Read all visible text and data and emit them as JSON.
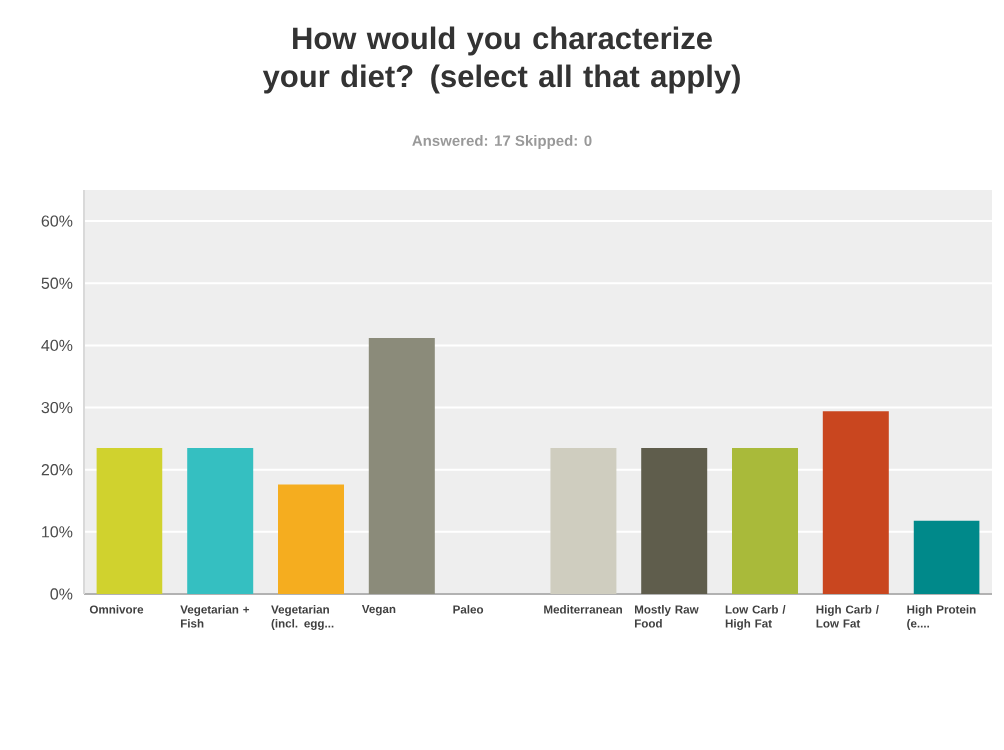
{
  "chart_data": {
    "type": "bar",
    "title": "How would you characterize your diet? (select all that apply)",
    "subtitle": "Answered: 17    Skipped: 0",
    "categories": [
      "Omnivore",
      "Vegetarian + Fish",
      "Vegetarian (incl. egg...",
      "Vegan",
      "Paleo",
      "Mediterranean",
      "Mostly Raw Food",
      "Low Carb / High Fat",
      "High Carb / Low Fat",
      "High Protein (e...."
    ],
    "values": [
      23.5,
      23.5,
      17.6,
      41.2,
      0,
      23.5,
      23.5,
      23.5,
      29.4,
      11.8
    ],
    "colors": [
      "#d0d22e",
      "#35bfc1",
      "#f5ad1f",
      "#8b8b7a",
      "#e39b3b",
      "#cfcdbf",
      "#5f5d4c",
      "#a9ba3a",
      "#c9461f",
      "#00898a"
    ],
    "ylim": [
      0,
      65
    ],
    "yticks": [
      {
        "value": 0,
        "label": "0%"
      },
      {
        "value": 10,
        "label": "10%"
      },
      {
        "value": 20,
        "label": "20%"
      },
      {
        "value": 30,
        "label": "30%"
      },
      {
        "value": 40,
        "label": "40%"
      },
      {
        "value": 50,
        "label": "50%"
      },
      {
        "value": 60,
        "label": "60%"
      }
    ],
    "grid": "y"
  }
}
